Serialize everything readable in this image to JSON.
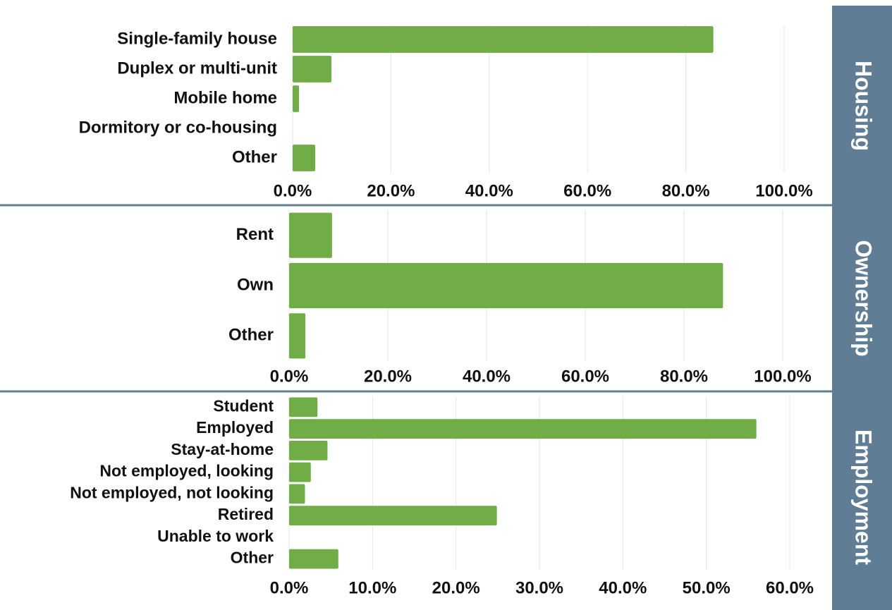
{
  "chart_data": [
    {
      "type": "bar",
      "orientation": "horizontal",
      "title": "Housing",
      "categories": [
        "Single-family house",
        "Duplex or multi-unit",
        "Mobile home",
        "Dormitory or co-housing",
        "Other"
      ],
      "values": [
        85.6,
        7.9,
        1.3,
        0,
        4.6
      ],
      "color": "#70ad47",
      "xlim": [
        0,
        100
      ],
      "xticks": [
        {
          "value": 0,
          "label": "0.0%"
        },
        {
          "value": 20,
          "label": "20.0%"
        },
        {
          "value": 40,
          "label": "40.0%"
        },
        {
          "value": 60,
          "label": "60.0%"
        },
        {
          "value": 80,
          "label": "80.0%"
        },
        {
          "value": 100,
          "label": "100.0%"
        }
      ],
      "grid": true
    },
    {
      "type": "bar",
      "orientation": "horizontal",
      "title": "Ownership",
      "categories": [
        "Rent",
        "Own",
        "Other"
      ],
      "values": [
        8.7,
        87.9,
        3.3
      ],
      "color": "#70ad47",
      "xlim": [
        0,
        100
      ],
      "xticks": [
        {
          "value": 0,
          "label": "0.0%"
        },
        {
          "value": 20,
          "label": "20.0%"
        },
        {
          "value": 40,
          "label": "40.0%"
        },
        {
          "value": 60,
          "label": "60.0%"
        },
        {
          "value": 80,
          "label": "80.0%"
        },
        {
          "value": 100,
          "label": "100.0%"
        }
      ],
      "grid": true
    },
    {
      "type": "bar",
      "orientation": "horizontal",
      "title": "Employment",
      "categories": [
        "Student",
        "Employed",
        "Stay-at-home",
        "Not employed, looking",
        "Not employed, not looking",
        "Retired",
        "Unable to work",
        "Other"
      ],
      "values": [
        3.4,
        56.0,
        4.6,
        2.6,
        1.9,
        24.9,
        0,
        5.9
      ],
      "color": "#70ad47",
      "xlim": [
        0,
        60
      ],
      "xticks": [
        {
          "value": 0,
          "label": "0.0%"
        },
        {
          "value": 10,
          "label": "10.0%"
        },
        {
          "value": 20,
          "label": "20.0%"
        },
        {
          "value": 30,
          "label": "30.0%"
        },
        {
          "value": 40,
          "label": "40.0%"
        },
        {
          "value": 50,
          "label": "50.0%"
        },
        {
          "value": 60,
          "label": "60.0%"
        }
      ],
      "grid": true
    }
  ]
}
